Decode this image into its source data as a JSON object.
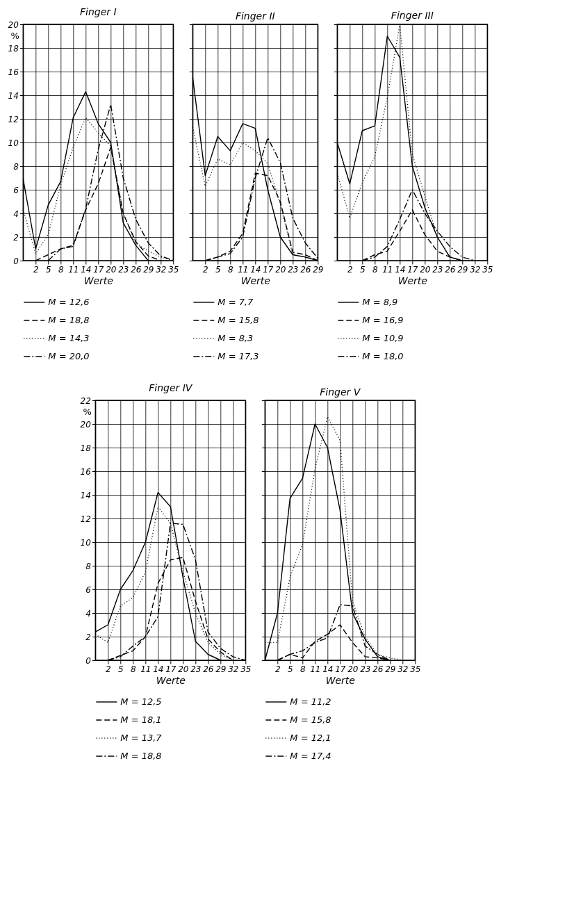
{
  "chart_data": [
    {
      "type": "line",
      "title": "Finger I",
      "xlabel": "Werte",
      "ylabel": "%",
      "xlim": [
        -1,
        35
      ],
      "ylim": [
        0,
        20
      ],
      "xticks": [
        2,
        5,
        8,
        11,
        14,
        17,
        20,
        23,
        26,
        29,
        32,
        35
      ],
      "yticks": [
        0,
        2,
        4,
        6,
        8,
        10,
        12,
        14,
        16,
        18,
        20
      ],
      "grid": true,
      "legend": "bottom",
      "series": [
        {
          "name": "M = 12,6",
          "color": "#000000",
          "line_style": "solid",
          "x": [
            -1,
            2,
            5,
            8,
            11,
            14,
            17,
            20,
            23,
            26,
            29
          ],
          "values": [
            6.9,
            1.0,
            4.7,
            6.7,
            12.1,
            14.3,
            11.6,
            10.0,
            3.2,
            1.3,
            0
          ]
        },
        {
          "name": "M = 18,8",
          "color": "#000000",
          "line_style": "dashed",
          "x": [
            2,
            5,
            8,
            11,
            14,
            17,
            20,
            23,
            26,
            29,
            32
          ],
          "values": [
            0,
            0.5,
            1.0,
            1.3,
            4.3,
            6.5,
            9.6,
            4.0,
            1.6,
            0.4,
            0
          ]
        },
        {
          "name": "M = 14,3",
          "color": "#000000",
          "line_style": "dotted",
          "x": [
            -1,
            2,
            5,
            8,
            11,
            14,
            17,
            20,
            23,
            26,
            29,
            32,
            35
          ],
          "values": [
            4.3,
            0.6,
            2.2,
            6.4,
            9.6,
            12.1,
            10.8,
            9.7,
            4.0,
            1.5,
            0.8,
            0.3,
            0
          ]
        },
        {
          "name": "M = 20,0",
          "color": "#000000",
          "line_style": "dashdot",
          "x": [
            5,
            8,
            11,
            14,
            17,
            20,
            23,
            26,
            29,
            32,
            35
          ],
          "values": [
            0,
            1.0,
            1.2,
            4.4,
            9.4,
            13.2,
            7.0,
            3.5,
            1.5,
            0.4,
            0
          ]
        }
      ]
    },
    {
      "type": "line",
      "title": "Finger II",
      "xlabel": "Werte",
      "xlim": [
        -1,
        29
      ],
      "ylim": [
        0,
        20
      ],
      "xticks": [
        2,
        5,
        8,
        11,
        14,
        17,
        20,
        23,
        26,
        29
      ],
      "yticks": [
        0,
        2,
        4,
        6,
        8,
        10,
        12,
        14,
        16,
        18,
        20
      ],
      "grid": true,
      "legend": "bottom",
      "tick_labels": "x",
      "series": [
        {
          "name": "M = 7,7",
          "color": "#000000",
          "line_style": "solid",
          "x": [
            -1,
            2,
            5,
            8,
            11,
            14,
            17,
            20,
            23,
            26,
            29
          ],
          "values": [
            15.5,
            7.2,
            10.5,
            9.3,
            11.6,
            11.2,
            6.0,
            2.0,
            0.5,
            0.3,
            0
          ]
        },
        {
          "name": "M = 15,8",
          "color": "#000000",
          "line_style": "dashed",
          "x": [
            2,
            5,
            8,
            11,
            14,
            17,
            20,
            23,
            26,
            29
          ],
          "values": [
            0,
            0.3,
            0.8,
            2.3,
            7.4,
            7.2,
            5.0,
            0.7,
            0.5,
            0
          ]
        },
        {
          "name": "M = 8,3",
          "color": "#000000",
          "line_style": "dotted",
          "x": [
            -1,
            2,
            5,
            8,
            11,
            14,
            17,
            20,
            23,
            26,
            29
          ],
          "values": [
            11.3,
            6.3,
            8.6,
            8.1,
            10.0,
            9.3,
            8.2,
            4.8,
            0.5,
            0.3,
            0
          ]
        },
        {
          "name": "M = 17,3",
          "color": "#000000",
          "line_style": "dashdot",
          "x": [
            2,
            5,
            8,
            11,
            14,
            17,
            20,
            23,
            26,
            29
          ],
          "values": [
            0,
            0.3,
            0.6,
            2.0,
            7.0,
            10.4,
            8.3,
            3.6,
            1.5,
            0.2
          ]
        }
      ]
    },
    {
      "type": "line",
      "title": "Finger III",
      "xlabel": "Werte",
      "xlim": [
        -1,
        35
      ],
      "ylim": [
        0,
        20
      ],
      "xticks": [
        2,
        5,
        8,
        11,
        14,
        17,
        20,
        23,
        26,
        29,
        32,
        35
      ],
      "yticks": [
        0,
        2,
        4,
        6,
        8,
        10,
        12,
        14,
        16,
        18,
        20
      ],
      "grid": true,
      "legend": "bottom",
      "tick_labels": "x",
      "series": [
        {
          "name": "M = 8,9",
          "color": "#000000",
          "line_style": "solid",
          "x": [
            -1,
            2,
            5,
            8,
            11,
            14,
            17,
            20,
            23,
            26,
            29
          ],
          "values": [
            10.0,
            6.5,
            11.0,
            11.4,
            19.0,
            17.2,
            8.0,
            4.5,
            2.0,
            0.3,
            0
          ]
        },
        {
          "name": "M = 16,9",
          "color": "#000000",
          "line_style": "dashed",
          "x": [
            5,
            8,
            11,
            14,
            17,
            20,
            23,
            26,
            29
          ],
          "values": [
            0,
            0.5,
            0.8,
            2.5,
            4.3,
            2.2,
            0.8,
            0.3,
            0
          ]
        },
        {
          "name": "M = 10,9",
          "color": "#000000",
          "line_style": "dotted",
          "x": [
            -1,
            2,
            5,
            8,
            11,
            14,
            17,
            20,
            23,
            26,
            29
          ],
          "values": [
            7.4,
            3.6,
            6.6,
            8.8,
            13.8,
            20.0,
            9.0,
            5.5,
            2.0,
            0.3,
            0
          ]
        },
        {
          "name": "M = 18,0",
          "color": "#000000",
          "line_style": "dashdot",
          "x": [
            5,
            8,
            11,
            14,
            17,
            20,
            23,
            26,
            29,
            32
          ],
          "values": [
            0,
            0.3,
            1.2,
            3.5,
            6.0,
            4.0,
            2.5,
            1.2,
            0.3,
            0
          ]
        }
      ]
    },
    {
      "type": "line",
      "title": "Finger IV",
      "xlabel": "Werte",
      "ylabel": "%",
      "xlim": [
        -1,
        35
      ],
      "ylim": [
        0,
        22
      ],
      "xticks": [
        2,
        5,
        8,
        11,
        14,
        17,
        20,
        23,
        26,
        29,
        32,
        35
      ],
      "yticks": [
        0,
        2,
        4,
        6,
        8,
        10,
        12,
        14,
        16,
        18,
        20,
        22
      ],
      "grid": true,
      "legend": "bottom",
      "series": [
        {
          "name": "M = 12,5",
          "color": "#000000",
          "line_style": "solid",
          "x": [
            -1,
            2,
            5,
            8,
            11,
            14,
            17,
            20,
            23,
            26,
            29
          ],
          "values": [
            2.4,
            3.0,
            6.0,
            7.6,
            10.0,
            14.2,
            13.0,
            7.0,
            1.6,
            0.5,
            0
          ]
        },
        {
          "name": "M = 18,1",
          "color": "#000000",
          "line_style": "dashed",
          "x": [
            2,
            5,
            8,
            11,
            14,
            17,
            20,
            23,
            26,
            29,
            32
          ],
          "values": [
            0,
            0.4,
            0.8,
            2.0,
            6.5,
            8.5,
            8.7,
            5.0,
            1.8,
            0.7,
            0
          ]
        },
        {
          "name": "M = 13,7",
          "color": "#000000",
          "line_style": "dotted",
          "x": [
            -1,
            2,
            5,
            8,
            11,
            14,
            17,
            20,
            23,
            26,
            29,
            32
          ],
          "values": [
            2.2,
            1.5,
            4.6,
            5.3,
            7.5,
            13.0,
            11.6,
            7.5,
            4.0,
            1.5,
            0.5,
            0
          ]
        },
        {
          "name": "M = 18,8",
          "color": "#000000",
          "line_style": "dashdot",
          "x": [
            2,
            5,
            8,
            11,
            14,
            17,
            20,
            23,
            26,
            29,
            32,
            35
          ],
          "values": [
            0,
            0.3,
            1.2,
            2.0,
            3.7,
            11.6,
            11.5,
            8.5,
            2.4,
            1.0,
            0.3,
            0
          ]
        }
      ]
    },
    {
      "type": "line",
      "title": "Finger V",
      "xlabel": "Werte",
      "xlim": [
        -1,
        35
      ],
      "ylim": [
        0,
        22
      ],
      "xticks": [
        2,
        5,
        8,
        11,
        14,
        17,
        20,
        23,
        26,
        29,
        32,
        35
      ],
      "yticks": [
        0,
        2,
        4,
        6,
        8,
        10,
        12,
        14,
        16,
        18,
        20,
        22
      ],
      "grid": true,
      "legend": "bottom",
      "tick_labels": "x",
      "series": [
        {
          "name": "M = 11,2",
          "color": "#000000",
          "line_style": "solid",
          "x": [
            -1,
            2,
            5,
            8,
            11,
            14,
            17,
            20,
            23,
            26,
            29
          ],
          "values": [
            0,
            4.0,
            13.7,
            15.4,
            20.0,
            18.0,
            12.7,
            4.0,
            1.8,
            0.3,
            0
          ]
        },
        {
          "name": "M = 15,8",
          "color": "#000000",
          "line_style": "dashed",
          "x": [
            2,
            5,
            8,
            11,
            14,
            17,
            20,
            23,
            26,
            29
          ],
          "values": [
            0,
            0.5,
            0.2,
            1.6,
            2.2,
            3.0,
            1.5,
            0.3,
            0.2,
            0
          ]
        },
        {
          "name": "M = 12,1",
          "color": "#000000",
          "line_style": "dotted",
          "x": [
            -1,
            2,
            5,
            8,
            11,
            14,
            17,
            20,
            23,
            26,
            29,
            32
          ],
          "values": [
            1.5,
            1.5,
            7.0,
            9.8,
            16.2,
            20.6,
            18.6,
            5.0,
            2.0,
            0.5,
            0.2,
            0
          ]
        },
        {
          "name": "M = 17,4",
          "color": "#000000",
          "line_style": "dashdot",
          "x": [
            2,
            5,
            8,
            11,
            14,
            17,
            20,
            23,
            26,
            29
          ],
          "values": [
            0,
            0.5,
            0.8,
            1.5,
            1.9,
            4.7,
            4.6,
            1.2,
            0.5,
            0
          ]
        }
      ]
    }
  ]
}
